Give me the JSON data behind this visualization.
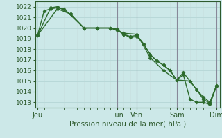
{
  "title": "",
  "xlabel": "Pression niveau de la mer( hPa )",
  "ylabel": "",
  "bg_color": "#cce8e8",
  "grid_color_major": "#b8d8d8",
  "grid_color_minor": "#c8e0e0",
  "line_color": "#2d6b2d",
  "ylim": [
    1012.5,
    1022.5
  ],
  "yticks": [
    1013,
    1014,
    1015,
    1016,
    1017,
    1018,
    1019,
    1020,
    1021,
    1022
  ],
  "xtick_labels": [
    "Jeu",
    "Lun",
    "Ven",
    "Sam",
    "Dim"
  ],
  "xtick_positions": [
    0,
    12,
    15,
    21,
    27
  ],
  "xlim": [
    -0.3,
    27.5
  ],
  "series1_x": [
    0,
    1,
    2,
    3,
    4,
    7,
    9,
    11,
    13,
    15,
    17,
    19,
    21,
    22,
    23,
    24,
    25,
    26,
    27
  ],
  "series1_y": [
    1019.3,
    1021.6,
    1021.8,
    1021.9,
    1021.8,
    1020.0,
    1020.0,
    1020.0,
    1019.5,
    1019.4,
    1017.2,
    1016.0,
    1015.1,
    1015.8,
    1015.0,
    1014.2,
    1013.5,
    1013.0,
    1014.6
  ],
  "series2_x": [
    0,
    2,
    3,
    5,
    7,
    9,
    11,
    12,
    13,
    14,
    15,
    16,
    17,
    18,
    19,
    20,
    21,
    23,
    24,
    25,
    26,
    27
  ],
  "series2_y": [
    1019.3,
    1021.9,
    1022.0,
    1021.3,
    1020.0,
    1020.0,
    1020.0,
    1019.8,
    1019.4,
    1019.1,
    1019.2,
    1018.5,
    1017.5,
    1016.9,
    1016.5,
    1016.0,
    1015.1,
    1015.0,
    1014.2,
    1013.3,
    1012.9,
    1014.6
  ],
  "series3_x": [
    0,
    3,
    5,
    7,
    9,
    11,
    12,
    13,
    14,
    15,
    16,
    17,
    18,
    19,
    20,
    21,
    22,
    23,
    24,
    25,
    26,
    27
  ],
  "series3_y": [
    1019.3,
    1021.8,
    1021.3,
    1020.0,
    1020.0,
    1020.0,
    1019.9,
    1019.4,
    1019.2,
    1019.3,
    1018.5,
    1017.5,
    1016.9,
    1016.5,
    1016.0,
    1015.1,
    1015.6,
    1013.3,
    1013.0,
    1013.0,
    1012.8,
    1014.5
  ],
  "vline_color": "#888899",
  "vline_positions": [
    12,
    15,
    21,
    27
  ],
  "marker": "D",
  "markersize": 2.5,
  "linewidth": 1.0
}
